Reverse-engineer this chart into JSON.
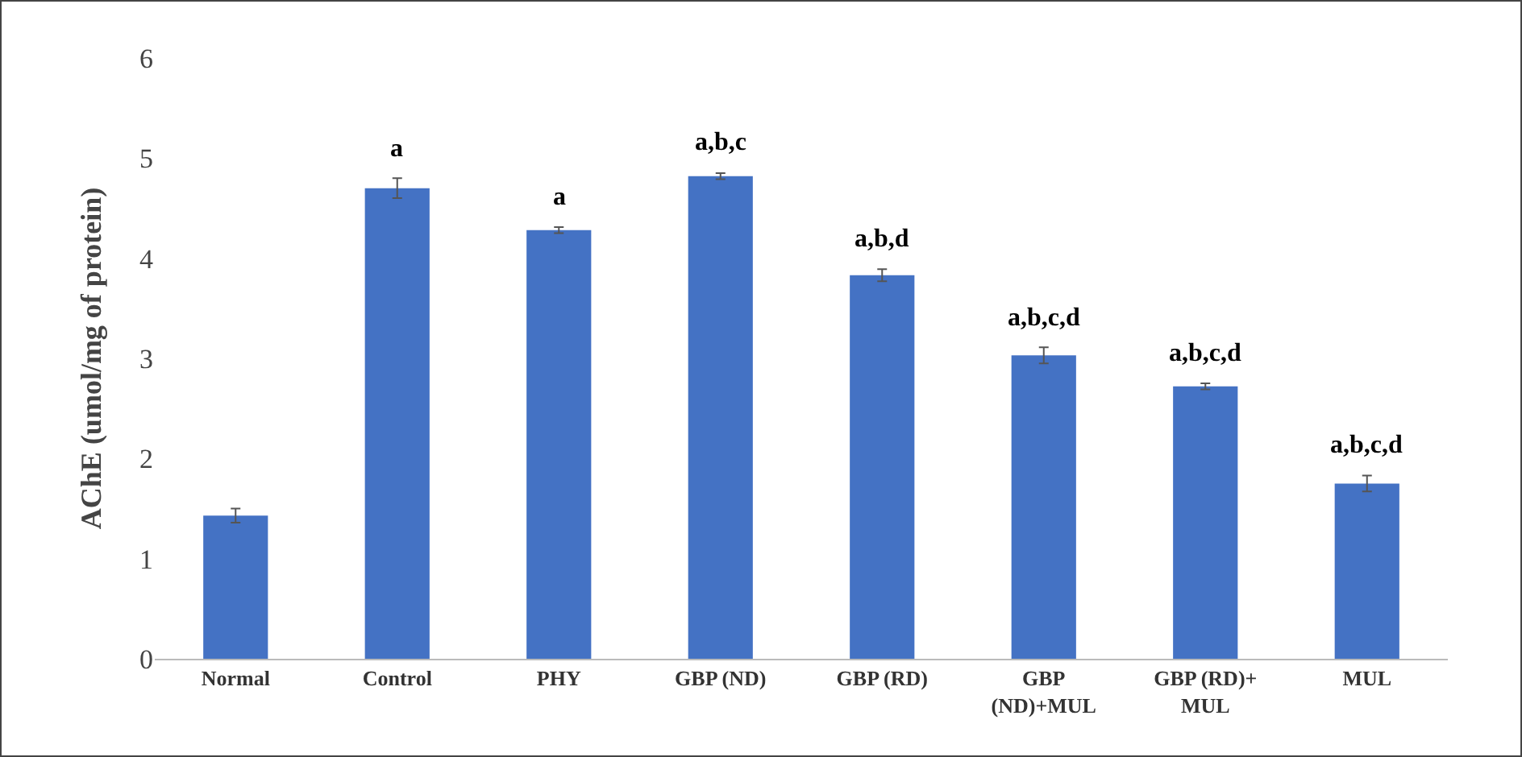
{
  "chart_data": {
    "type": "bar",
    "ylabel": "AChE (umol/mg of protein)",
    "categories": [
      "Normal",
      "Control",
      "PHY",
      "GBP (ND)",
      "GBP (RD)",
      "GBP (ND)+MUL",
      "GBP (RD)+ MUL",
      "MUL"
    ],
    "values": [
      1.43,
      4.7,
      4.28,
      4.82,
      3.83,
      3.03,
      2.72,
      1.75
    ],
    "errors": [
      0.07,
      0.1,
      0.03,
      0.03,
      0.06,
      0.08,
      0.03,
      0.08
    ],
    "color": "#4472c4",
    "ylim": [
      0,
      6
    ],
    "yticks": [
      0,
      1,
      2,
      3,
      4,
      5,
      6
    ],
    "grid": false,
    "legend": false,
    "annotations": [
      {
        "text": "a",
        "x": "Control",
        "y": 4.8
      },
      {
        "text": "a",
        "x": "PHY",
        "y": 4.31
      },
      {
        "text": "a,b,c",
        "x": "GBP (ND)",
        "y": 4.85
      },
      {
        "text": "a,b,d",
        "x": "GBP (RD)",
        "y": 3.89
      },
      {
        "text": "a,b,c,d",
        "x": "GBP (ND)+MUL",
        "y": 3.11
      },
      {
        "text": "a,b,c,d",
        "x": "GBP (RD)+ MUL",
        "y": 2.75
      },
      {
        "text": "a,b,c,d",
        "x": "MUL",
        "y": 1.83
      }
    ]
  }
}
